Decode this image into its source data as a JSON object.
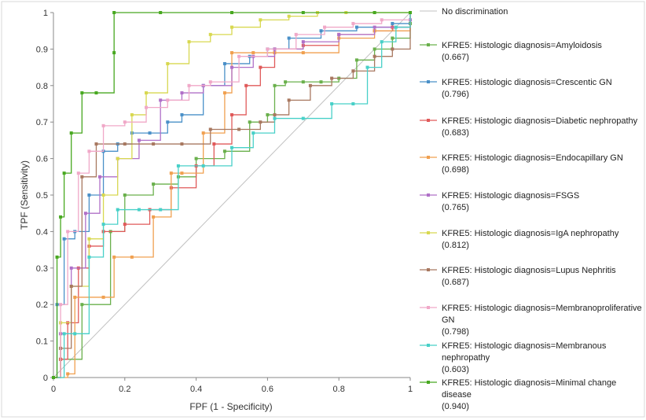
{
  "chart_data": {
    "type": "line",
    "title": "",
    "xlabel": "FPF (1 - Specificity)",
    "ylabel": "TPF (Sensitivity)",
    "xlim": [
      0,
      1
    ],
    "ylim": [
      0,
      1
    ],
    "x_ticks": [
      "0",
      "0.2",
      "0.4",
      "0.6",
      "0.8",
      "1"
    ],
    "y_ticks": [
      "0",
      "0.1",
      "0.2",
      "0.3",
      "0.4",
      "0.5",
      "0.6",
      "0.7",
      "0.8",
      "0.9",
      "1"
    ],
    "grid": false,
    "legend_position": "right",
    "reference_line": {
      "label": "No discrimination",
      "color": "#c0c0c0",
      "x": [
        0,
        1
      ],
      "y": [
        0,
        1
      ]
    },
    "series": [
      {
        "name": "KFRE5: Histologic diagnosis=Amyloidosis",
        "auc": "(0.667)",
        "color": "#6ab04c",
        "x": [
          0,
          0.02,
          0.08,
          0.16,
          0.2,
          0.28,
          0.35,
          0.4,
          0.48,
          0.55,
          0.6,
          0.62,
          0.65,
          0.7,
          0.75,
          0.8,
          0.85,
          0.9,
          0.95,
          1
        ],
        "y": [
          0,
          0.05,
          0.2,
          0.4,
          0.5,
          0.53,
          0.55,
          0.6,
          0.62,
          0.7,
          0.72,
          0.8,
          0.81,
          0.81,
          0.81,
          0.82,
          0.87,
          0.9,
          0.93,
          0.97
        ]
      },
      {
        "name": "KFRE5: Histologic diagnosis=Crescentic GN",
        "auc": "(0.796)",
        "color": "#4a90c8",
        "x": [
          0,
          0.01,
          0.03,
          0.06,
          0.1,
          0.14,
          0.18,
          0.22,
          0.27,
          0.32,
          0.36,
          0.42,
          0.48,
          0.55,
          0.6,
          0.66,
          0.75,
          0.85,
          0.95,
          1
        ],
        "y": [
          0,
          0.2,
          0.38,
          0.4,
          0.5,
          0.62,
          0.64,
          0.67,
          0.67,
          0.7,
          0.72,
          0.8,
          0.86,
          0.88,
          0.9,
          0.93,
          0.95,
          0.96,
          0.97,
          1
        ]
      },
      {
        "name": "KFRE5: Histologic diagnosis=Diabetic nephropathy",
        "auc": "(0.683)",
        "color": "#e05a5a",
        "x": [
          0,
          0.02,
          0.04,
          0.07,
          0.1,
          0.14,
          0.2,
          0.27,
          0.33,
          0.4,
          0.45,
          0.5,
          0.54,
          0.58,
          0.62,
          0.7,
          0.8,
          0.9,
          0.95,
          1
        ],
        "y": [
          0,
          0.05,
          0.15,
          0.3,
          0.36,
          0.4,
          0.42,
          0.46,
          0.52,
          0.58,
          0.64,
          0.72,
          0.8,
          0.85,
          0.9,
          0.91,
          0.94,
          0.95,
          0.96,
          1
        ]
      },
      {
        "name": "KFRE5: Histologic diagnosis=Endocapillary GN",
        "auc": "(0.698)",
        "color": "#f0a050",
        "x": [
          0,
          0.04,
          0.06,
          0.14,
          0.17,
          0.22,
          0.28,
          0.33,
          0.36,
          0.42,
          0.48,
          0.5,
          0.56,
          0.62,
          0.7,
          0.8,
          0.9,
          1
        ],
        "y": [
          0,
          0.01,
          0.22,
          0.22,
          0.33,
          0.33,
          0.44,
          0.56,
          0.56,
          0.67,
          0.78,
          0.89,
          0.89,
          0.89,
          0.89,
          0.93,
          0.95,
          1
        ]
      },
      {
        "name": "KFRE5: Histologic diagnosis=FSGS",
        "auc": "(0.765)",
        "color": "#b070c8",
        "x": [
          0,
          0.02,
          0.05,
          0.09,
          0.13,
          0.18,
          0.24,
          0.3,
          0.36,
          0.42,
          0.5,
          0.56,
          0.62,
          0.7,
          0.8,
          0.9,
          1
        ],
        "y": [
          0,
          0.12,
          0.3,
          0.45,
          0.55,
          0.6,
          0.65,
          0.76,
          0.78,
          0.8,
          0.85,
          0.88,
          0.9,
          0.92,
          0.94,
          0.96,
          0.98
        ]
      },
      {
        "name": "KFRE5: Histologic diagnosis=IgA nephropathy",
        "auc": "(0.812)",
        "color": "#d8d850",
        "x": [
          0,
          0.02,
          0.05,
          0.1,
          0.14,
          0.18,
          0.22,
          0.26,
          0.32,
          0.38,
          0.44,
          0.5,
          0.58,
          0.66,
          0.74,
          0.82,
          0.9,
          1
        ],
        "y": [
          0,
          0.15,
          0.25,
          0.38,
          0.5,
          0.6,
          0.72,
          0.78,
          0.86,
          0.92,
          0.94,
          0.96,
          0.98,
          0.99,
          1,
          1,
          1,
          1
        ]
      },
      {
        "name": "KFRE5: Histologic diagnosis=Lupus Nephritis",
        "auc": "(0.687)",
        "color": "#a87860",
        "x": [
          0,
          0.02,
          0.05,
          0.08,
          0.12,
          0.2,
          0.28,
          0.36,
          0.44,
          0.52,
          0.58,
          0.62,
          0.66,
          0.72,
          0.78,
          0.84,
          0.9,
          0.95,
          1
        ],
        "y": [
          0,
          0.08,
          0.25,
          0.55,
          0.64,
          0.64,
          0.64,
          0.64,
          0.68,
          0.68,
          0.7,
          0.72,
          0.76,
          0.8,
          0.82,
          0.84,
          0.88,
          0.9,
          1
        ]
      },
      {
        "name": "KFRE5: Histologic diagnosis=Membranoproliferative GN",
        "auc": "(0.798)",
        "color": "#f0a8c8",
        "x": [
          0,
          0.02,
          0.04,
          0.07,
          0.1,
          0.14,
          0.2,
          0.26,
          0.32,
          0.38,
          0.44,
          0.52,
          0.6,
          0.68,
          0.76,
          0.84,
          0.92,
          1
        ],
        "y": [
          0,
          0.2,
          0.4,
          0.56,
          0.62,
          0.69,
          0.7,
          0.74,
          0.76,
          0.8,
          0.81,
          0.88,
          0.9,
          0.94,
          0.96,
          0.97,
          0.98,
          1
        ]
      },
      {
        "name": "KFRE5: Histologic diagnosis=Membranous nephropathy",
        "auc": "(0.603)",
        "color": "#48d0c8",
        "x": [
          0,
          0.03,
          0.06,
          0.1,
          0.14,
          0.18,
          0.24,
          0.3,
          0.35,
          0.42,
          0.5,
          0.56,
          0.62,
          0.7,
          0.78,
          0.84,
          0.88,
          0.92,
          0.96,
          1
        ],
        "y": [
          0,
          0.12,
          0.12,
          0.33,
          0.42,
          0.46,
          0.46,
          0.46,
          0.58,
          0.58,
          0.63,
          0.67,
          0.71,
          0.71,
          0.75,
          0.75,
          0.85,
          0.92,
          0.96,
          1
        ]
      },
      {
        "name": "KFRE5: Histologic diagnosis=Minimal change disease",
        "auc": "(0.940)",
        "color": "#48a820",
        "x": [
          0,
          0.01,
          0.02,
          0.03,
          0.05,
          0.08,
          0.12,
          0.17,
          0.17,
          0.3,
          0.5,
          0.7,
          0.9,
          1
        ],
        "y": [
          0,
          0.33,
          0.44,
          0.56,
          0.67,
          0.78,
          0.78,
          0.89,
          1,
          1,
          1,
          1,
          1,
          1
        ]
      }
    ]
  }
}
